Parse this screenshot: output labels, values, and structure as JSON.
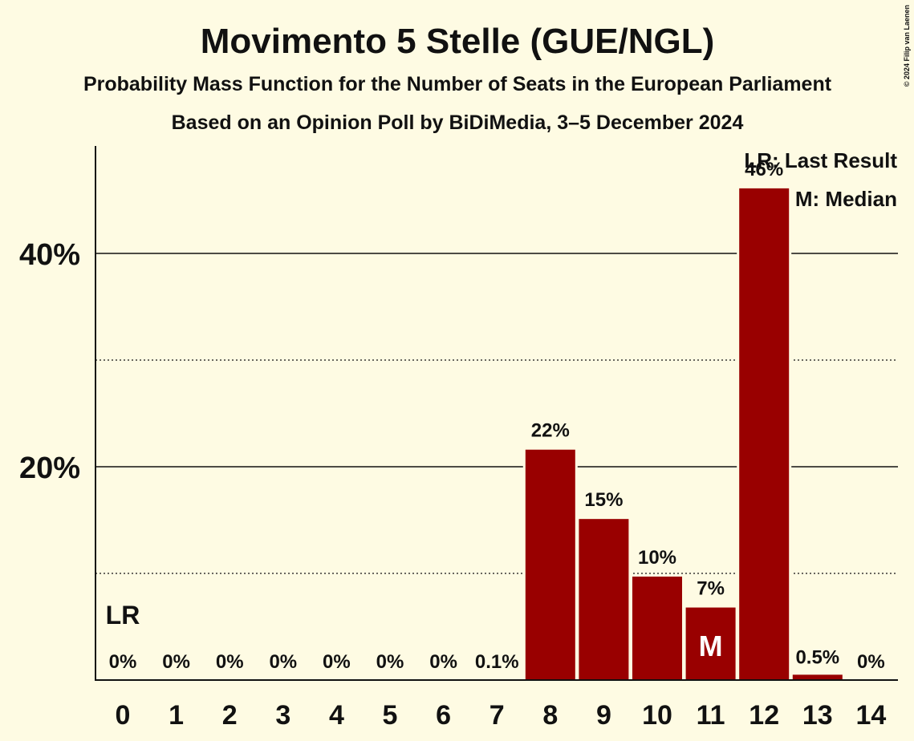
{
  "chart_data": {
    "type": "bar",
    "title": "Movimento 5 Stelle (GUE/NGL)",
    "subtitle": "Probability Mass Function for the Number of Seats in the European Parliament",
    "subtitle2": "Based on an Opinion Poll by BiDiMedia, 3–5 December 2024",
    "copyright": "© 2024 Filip van Laenen",
    "categories": [
      "0",
      "1",
      "2",
      "3",
      "4",
      "5",
      "6",
      "7",
      "8",
      "9",
      "10",
      "11",
      "12",
      "13",
      "14"
    ],
    "values": [
      0,
      0,
      0,
      0,
      0,
      0,
      0,
      0.1,
      21.6,
      15.1,
      9.7,
      6.8,
      46.1,
      0.5,
      0
    ],
    "value_labels": [
      "0%",
      "0%",
      "0%",
      "0%",
      "0%",
      "0%",
      "0%",
      "0.1%",
      "22%",
      "15%",
      "10%",
      "7%",
      "46%",
      "0.5%",
      "0%"
    ],
    "ylim": [
      0,
      50
    ],
    "yticks_major": [
      20,
      40
    ],
    "ytick_labels": [
      "20%",
      "40%"
    ],
    "yticks_minor": [
      10,
      30
    ],
    "last_result_index": 0,
    "last_result_marker": "LR",
    "median_index": 11,
    "median_marker": "M",
    "bar_color": "#990000",
    "legend": [
      "LR: Last Result",
      "M: Median"
    ],
    "legend_position": "top-right"
  }
}
